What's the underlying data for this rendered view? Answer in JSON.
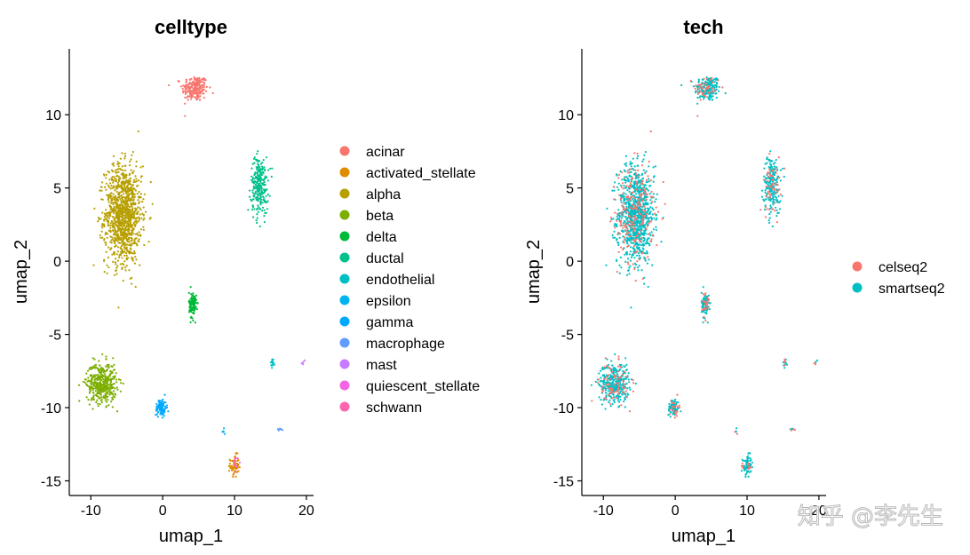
{
  "chart_data": [
    {
      "type": "scatter",
      "title": "celltype",
      "xlabel": "umap_1",
      "ylabel": "umap_2",
      "xlim": [
        -13,
        21
      ],
      "ylim": [
        -16,
        14.5
      ],
      "xticks": [
        -10,
        0,
        10,
        20
      ],
      "yticks": [
        -15,
        -10,
        -5,
        0,
        5,
        10
      ],
      "xtick_labels": [
        "-10",
        "0",
        "10",
        "20"
      ],
      "ytick_labels": [
        "-15",
        "-10",
        "-5",
        "0",
        "5",
        "10"
      ],
      "legend_position": "right",
      "series": [
        {
          "name": "acinar",
          "color": "#F8766D",
          "clusters": [
            {
              "cx": 4.5,
              "cy": 11.8,
              "sx": 1.2,
              "sy": 0.6,
              "n": 220
            }
          ]
        },
        {
          "name": "activated_stellate",
          "color": "#DE8C00",
          "clusters": [
            {
              "cx": 10.0,
              "cy": -14.0,
              "sx": 0.4,
              "sy": 0.5,
              "n": 70
            }
          ]
        },
        {
          "name": "alpha",
          "color": "#B79F00",
          "clusters": [
            {
              "cx": -5.5,
              "cy": 3.2,
              "sx": 1.7,
              "sy": 2.2,
              "n": 1100
            }
          ]
        },
        {
          "name": "beta",
          "color": "#7CAE00",
          "clusters": [
            {
              "cx": -8.5,
              "cy": -8.3,
              "sx": 1.4,
              "sy": 0.9,
              "n": 420
            }
          ]
        },
        {
          "name": "delta",
          "color": "#00BA38",
          "clusters": [
            {
              "cx": 4.2,
              "cy": -3.0,
              "sx": 0.35,
              "sy": 0.6,
              "n": 120
            }
          ]
        },
        {
          "name": "ductal",
          "color": "#00C08B",
          "clusters": [
            {
              "cx": 13.5,
              "cy": 5.2,
              "sx": 0.8,
              "sy": 1.3,
              "n": 260
            }
          ]
        },
        {
          "name": "endothelial",
          "color": "#00BFC4",
          "clusters": [
            {
              "cx": 15.3,
              "cy": -7.0,
              "sx": 0.2,
              "sy": 0.25,
              "n": 14
            }
          ]
        },
        {
          "name": "epsilon",
          "color": "#00B4F0",
          "clusters": [
            {
              "cx": 8.5,
              "cy": -11.5,
              "sx": 0.2,
              "sy": 0.2,
              "n": 5
            }
          ]
        },
        {
          "name": "gamma",
          "color": "#00A9FF",
          "clusters": [
            {
              "cx": -0.2,
              "cy": -10.0,
              "sx": 0.5,
              "sy": 0.4,
              "n": 95
            }
          ]
        },
        {
          "name": "macrophage",
          "color": "#619CFF",
          "clusters": [
            {
              "cx": 16.4,
              "cy": -11.5,
              "sx": 0.15,
              "sy": 0.1,
              "n": 6
            }
          ]
        },
        {
          "name": "mast",
          "color": "#C77CFF",
          "clusters": [
            {
              "cx": 19.5,
              "cy": -6.9,
              "sx": 0.1,
              "sy": 0.08,
              "n": 5
            }
          ]
        },
        {
          "name": "quiescent_stellate",
          "color": "#F564E3",
          "clusters": [
            {
              "cx": 10.3,
              "cy": -13.8,
              "sx": 0.3,
              "sy": 0.3,
              "n": 8
            }
          ]
        },
        {
          "name": "schwann",
          "color": "#FF64B0",
          "clusters": [
            {
              "cx": 10.0,
              "cy": -13.5,
              "sx": 0.2,
              "sy": 0.2,
              "n": 4
            }
          ]
        }
      ]
    },
    {
      "type": "scatter",
      "title": "tech",
      "xlabel": "umap_1",
      "ylabel": "umap_2",
      "xlim": [
        -13,
        21
      ],
      "ylim": [
        -16,
        14.5
      ],
      "xticks": [
        -10,
        0,
        10,
        20
      ],
      "yticks": [
        -15,
        -10,
        -5,
        0,
        5,
        10
      ],
      "xtick_labels": [
        "-10",
        "0",
        "10",
        "20"
      ],
      "ytick_labels": [
        "-15",
        "-10",
        "-5",
        "0",
        "5",
        "10"
      ],
      "legend_position": "right",
      "series": [
        {
          "name": "smartseq2",
          "color": "#00BFC4",
          "share": 0.8
        },
        {
          "name": "celseq2",
          "color": "#F8766D",
          "share": 0.2
        }
      ]
    }
  ],
  "watermark": "知乎 @李先生"
}
